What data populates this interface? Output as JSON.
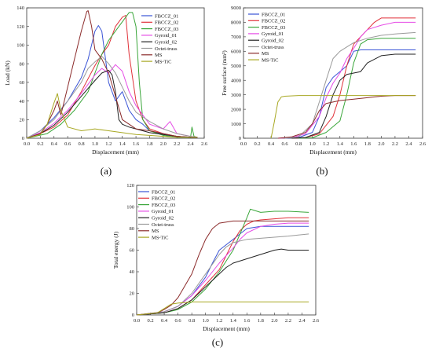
{
  "chart_data": [
    {
      "type": "line",
      "panel": "(a)",
      "xlabel": "Displacement (mm)",
      "ylabel": "Load (kN)",
      "xlim": [
        0.0,
        2.6
      ],
      "ylim": [
        0,
        140
      ],
      "xticks": [
        0.0,
        0.2,
        0.4,
        0.6,
        0.8,
        1.0,
        1.2,
        1.4,
        1.6,
        1.8,
        2.0,
        2.2,
        2.4,
        2.6
      ],
      "yticks": [
        0,
        20,
        40,
        60,
        80,
        100,
        120,
        140
      ],
      "legend_position": "top-right",
      "series": [
        {
          "name": "FBCCZ_01",
          "color": "#3a54d6",
          "x": [
            0.0,
            0.2,
            0.4,
            0.6,
            0.8,
            0.9,
            1.0,
            1.05,
            1.1,
            1.2,
            1.3,
            1.4,
            1.5,
            1.6,
            1.7,
            1.8,
            2.0,
            2.2,
            2.4,
            2.5
          ],
          "y": [
            0,
            8,
            22,
            40,
            65,
            85,
            115,
            121,
            115,
            60,
            40,
            50,
            30,
            20,
            15,
            8,
            4,
            2,
            1,
            1
          ]
        },
        {
          "name": "FBCCZ_02",
          "color": "#e0323a",
          "x": [
            0.0,
            0.2,
            0.4,
            0.6,
            0.8,
            1.0,
            1.1,
            1.2,
            1.3,
            1.4,
            1.45,
            1.5,
            1.6,
            1.7,
            1.8,
            2.0,
            2.2,
            2.4,
            2.5
          ],
          "y": [
            0,
            5,
            12,
            25,
            50,
            78,
            90,
            100,
            120,
            130,
            132,
            90,
            40,
            20,
            10,
            5,
            2,
            1,
            1
          ]
        },
        {
          "name": "FBCCZ_03",
          "color": "#3aa63a",
          "x": [
            0.0,
            0.3,
            0.5,
            0.7,
            0.9,
            1.0,
            1.1,
            1.2,
            1.3,
            1.4,
            1.5,
            1.55,
            1.6,
            1.65,
            1.7,
            1.8,
            2.0,
            2.2,
            2.4,
            2.42,
            2.45,
            2.5
          ],
          "y": [
            0,
            5,
            15,
            30,
            50,
            70,
            90,
            105,
            115,
            125,
            135,
            135,
            120,
            60,
            20,
            8,
            3,
            1,
            1,
            12,
            2,
            1
          ]
        },
        {
          "name": "Gyroid_01",
          "color": "#e64ce6",
          "x": [
            0.0,
            0.2,
            0.4,
            0.6,
            0.8,
            1.0,
            1.1,
            1.2,
            1.3,
            1.4,
            1.5,
            1.6,
            1.7,
            1.8,
            2.0,
            2.1,
            2.2,
            2.4,
            2.5
          ],
          "y": [
            0,
            6,
            16,
            30,
            48,
            68,
            75,
            70,
            79,
            72,
            50,
            35,
            25,
            15,
            10,
            18,
            5,
            2,
            1
          ]
        },
        {
          "name": "Gyroid_02",
          "color": "#222222",
          "x": [
            0.0,
            0.2,
            0.4,
            0.6,
            0.8,
            1.0,
            1.1,
            1.2,
            1.25,
            1.3,
            1.35,
            1.4,
            1.5,
            1.6,
            1.8,
            2.0,
            2.2,
            2.4,
            2.5
          ],
          "y": [
            0,
            5,
            14,
            28,
            45,
            62,
            70,
            73,
            68,
            50,
            20,
            15,
            12,
            10,
            6,
            4,
            2,
            1,
            1
          ]
        },
        {
          "name": "Octet-truss",
          "color": "#9a9a9a",
          "x": [
            0.0,
            0.2,
            0.4,
            0.6,
            0.8,
            0.9,
            1.0,
            1.1,
            1.2,
            1.3,
            1.4,
            1.5,
            1.6,
            1.8,
            2.0,
            2.2,
            2.4,
            2.5
          ],
          "y": [
            0,
            8,
            20,
            40,
            60,
            75,
            82,
            88,
            80,
            70,
            55,
            40,
            28,
            18,
            10,
            5,
            2,
            1
          ]
        },
        {
          "name": "MS",
          "color": "#8b2b2b",
          "x": [
            0.0,
            0.2,
            0.3,
            0.4,
            0.45,
            0.5,
            0.6,
            0.7,
            0.8,
            0.88,
            0.9,
            0.95,
            1.0,
            1.1,
            1.2,
            1.3,
            1.4,
            1.5,
            1.6,
            1.8,
            2.0,
            2.2,
            2.4,
            2.5
          ],
          "y": [
            0,
            5,
            15,
            30,
            40,
            25,
            55,
            85,
            115,
            136,
            137,
            120,
            95,
            85,
            70,
            45,
            20,
            15,
            10,
            8,
            5,
            2,
            1,
            1
          ]
        },
        {
          "name": "MS-TiC",
          "color": "#a8a823",
          "x": [
            0.0,
            0.2,
            0.3,
            0.4,
            0.45,
            0.5,
            0.6,
            0.8,
            1.0,
            1.2,
            1.4,
            1.6,
            1.8,
            2.0,
            2.2,
            2.4,
            2.5
          ],
          "y": [
            0,
            4,
            15,
            38,
            48,
            30,
            12,
            8,
            10,
            8,
            6,
            4,
            3,
            2,
            1,
            1,
            1
          ]
        }
      ]
    },
    {
      "type": "line",
      "panel": "(b)",
      "xlabel": "Displacement (mm)",
      "ylabel": "Free surface (mm²)",
      "xlim": [
        0.0,
        2.6
      ],
      "ylim": [
        0,
        9000
      ],
      "xticks": [
        0.0,
        0.2,
        0.4,
        0.6,
        0.8,
        1.0,
        1.2,
        1.4,
        1.6,
        1.8,
        2.0,
        2.2,
        2.4,
        2.6
      ],
      "yticks": [
        0,
        1000,
        2000,
        3000,
        4000,
        5000,
        6000,
        7000,
        8000,
        9000
      ],
      "legend_position": "top-left",
      "series": [
        {
          "name": "FBCCZ_01",
          "color": "#3a54d6",
          "x": [
            0.6,
            0.8,
            1.0,
            1.1,
            1.2,
            1.3,
            1.4,
            1.5,
            1.6,
            1.7,
            2.0,
            2.2,
            2.5
          ],
          "y": [
            0,
            50,
            400,
            1500,
            3500,
            4200,
            4600,
            5000,
            6000,
            6100,
            6100,
            6100,
            6100
          ]
        },
        {
          "name": "FBCCZ_02",
          "color": "#e0323a",
          "x": [
            0.7,
            0.9,
            1.1,
            1.3,
            1.4,
            1.5,
            1.6,
            1.7,
            1.8,
            1.9,
            2.0,
            2.2,
            2.5
          ],
          "y": [
            0,
            50,
            300,
            1500,
            3000,
            5000,
            6500,
            7000,
            7500,
            8000,
            8300,
            8300,
            8300
          ]
        },
        {
          "name": "FBCCZ_03",
          "color": "#3aa63a",
          "x": [
            0.8,
            1.0,
            1.2,
            1.4,
            1.5,
            1.6,
            1.7,
            1.8,
            2.0,
            2.2,
            2.5
          ],
          "y": [
            0,
            30,
            400,
            1200,
            3000,
            5200,
            6500,
            6800,
            6900,
            6900,
            6900
          ]
        },
        {
          "name": "Gyroid_01",
          "color": "#e64ce6",
          "x": [
            0.5,
            0.7,
            0.9,
            1.1,
            1.2,
            1.3,
            1.4,
            1.5,
            1.6,
            1.7,
            1.8,
            2.0,
            2.2,
            2.5
          ],
          "y": [
            0,
            50,
            300,
            1500,
            2800,
            3800,
            4500,
            5500,
            6200,
            7000,
            7500,
            7800,
            8000,
            8000
          ]
        },
        {
          "name": "Gyroid_02",
          "color": "#222222",
          "x": [
            0.7,
            0.9,
            1.1,
            1.2,
            1.3,
            1.4,
            1.5,
            1.6,
            1.7,
            1.8,
            2.0,
            2.2,
            2.5
          ],
          "y": [
            0,
            50,
            400,
            1500,
            3000,
            4000,
            4400,
            4500,
            4600,
            5200,
            5700,
            5800,
            5800
          ]
        },
        {
          "name": "Octet-truss",
          "color": "#9a9a9a",
          "x": [
            0.6,
            0.8,
            1.0,
            1.1,
            1.2,
            1.3,
            1.4,
            1.5,
            1.6,
            1.8,
            2.0,
            2.2,
            2.5
          ],
          "y": [
            0,
            100,
            1000,
            2500,
            4000,
            5500,
            6000,
            6300,
            6600,
            6900,
            7100,
            7200,
            7300
          ]
        },
        {
          "name": "MS",
          "color": "#8b2b2b",
          "x": [
            0.5,
            0.7,
            0.9,
            1.0,
            1.1,
            1.2,
            1.4,
            1.6,
            1.8,
            2.0,
            2.2,
            2.5
          ],
          "y": [
            0,
            100,
            400,
            1000,
            1900,
            2400,
            2600,
            2700,
            2800,
            2900,
            2950,
            2950
          ]
        },
        {
          "name": "MS-TiC",
          "color": "#a8a823",
          "x": [
            0.4,
            0.45,
            0.5,
            0.55,
            0.6,
            0.8,
            1.0,
            1.4,
            1.8,
            2.2,
            2.5
          ],
          "y": [
            0,
            1200,
            2500,
            2850,
            2900,
            2950,
            2950,
            2950,
            2950,
            2950,
            2950
          ]
        }
      ]
    },
    {
      "type": "line",
      "panel": "(c)",
      "xlabel": "Displacement (mm)",
      "ylabel": "Total energy (J)",
      "xlim": [
        0.0,
        2.6
      ],
      "ylim": [
        0,
        120
      ],
      "xticks": [
        0.0,
        0.2,
        0.4,
        0.6,
        0.8,
        1.0,
        1.2,
        1.4,
        1.6,
        1.8,
        2.0,
        2.2,
        2.4,
        2.6
      ],
      "yticks": [
        0,
        20,
        40,
        60,
        80,
        100,
        120
      ],
      "legend_position": "top-left",
      "series": [
        {
          "name": "FBCCZ_01",
          "color": "#3a54d6",
          "x": [
            0.0,
            0.4,
            0.6,
            0.8,
            1.0,
            1.1,
            1.2,
            1.3,
            1.4,
            1.5,
            1.6,
            1.8,
            2.0,
            2.2,
            2.5
          ],
          "y": [
            0,
            3,
            8,
            18,
            35,
            48,
            60,
            65,
            70,
            75,
            80,
            82,
            82,
            82,
            82
          ]
        },
        {
          "name": "FBCCZ_02",
          "color": "#e0323a",
          "x": [
            0.0,
            0.4,
            0.6,
            0.8,
            1.0,
            1.2,
            1.3,
            1.4,
            1.5,
            1.6,
            1.7,
            1.8,
            2.0,
            2.2,
            2.5
          ],
          "y": [
            0,
            2,
            6,
            14,
            28,
            42,
            55,
            68,
            78,
            84,
            87,
            88,
            89,
            90,
            90
          ]
        },
        {
          "name": "FBCCZ_03",
          "color": "#3aa63a",
          "x": [
            0.0,
            0.4,
            0.6,
            0.8,
            1.0,
            1.2,
            1.4,
            1.5,
            1.6,
            1.65,
            1.7,
            1.8,
            2.0,
            2.2,
            2.5
          ],
          "y": [
            0,
            2,
            5,
            12,
            24,
            40,
            60,
            75,
            90,
            98,
            97,
            95,
            96,
            96,
            95
          ]
        },
        {
          "name": "Gyroid_01",
          "color": "#e64ce6",
          "x": [
            0.0,
            0.4,
            0.6,
            0.8,
            1.0,
            1.2,
            1.4,
            1.5,
            1.6,
            1.8,
            2.0,
            2.2,
            2.5
          ],
          "y": [
            0,
            3,
            8,
            18,
            32,
            48,
            62,
            70,
            76,
            82,
            84,
            85,
            85
          ]
        },
        {
          "name": "Gyroid_02",
          "color": "#222222",
          "x": [
            0.0,
            0.4,
            0.6,
            0.8,
            1.0,
            1.2,
            1.3,
            1.4,
            1.6,
            1.8,
            2.0,
            2.1,
            2.2,
            2.5
          ],
          "y": [
            0,
            2,
            6,
            14,
            26,
            38,
            44,
            48,
            52,
            56,
            60,
            61,
            60,
            60
          ]
        },
        {
          "name": "Octet-truss",
          "color": "#9a9a9a",
          "x": [
            0.0,
            0.4,
            0.6,
            0.8,
            1.0,
            1.2,
            1.3,
            1.4,
            1.6,
            1.8,
            2.0,
            2.2,
            2.5
          ],
          "y": [
            0,
            3,
            8,
            20,
            38,
            56,
            63,
            67,
            70,
            71,
            72,
            73,
            75
          ]
        },
        {
          "name": "MS",
          "color": "#8b2b2b",
          "x": [
            0.0,
            0.3,
            0.4,
            0.5,
            0.6,
            0.8,
            0.9,
            1.0,
            1.1,
            1.2,
            1.3,
            1.4,
            1.6,
            1.8,
            2.0,
            2.2,
            2.5
          ],
          "y": [
            0,
            2,
            5,
            9,
            16,
            38,
            55,
            70,
            80,
            85,
            86,
            87,
            87,
            87,
            87,
            87,
            87
          ]
        },
        {
          "name": "MS-TiC",
          "color": "#a8a823",
          "x": [
            0.0,
            0.3,
            0.4,
            0.5,
            0.6,
            0.8,
            1.0,
            1.2,
            1.6,
            2.0,
            2.5
          ],
          "y": [
            0,
            2,
            6,
            10,
            11,
            12,
            12,
            12,
            12,
            12,
            12
          ]
        }
      ]
    }
  ]
}
